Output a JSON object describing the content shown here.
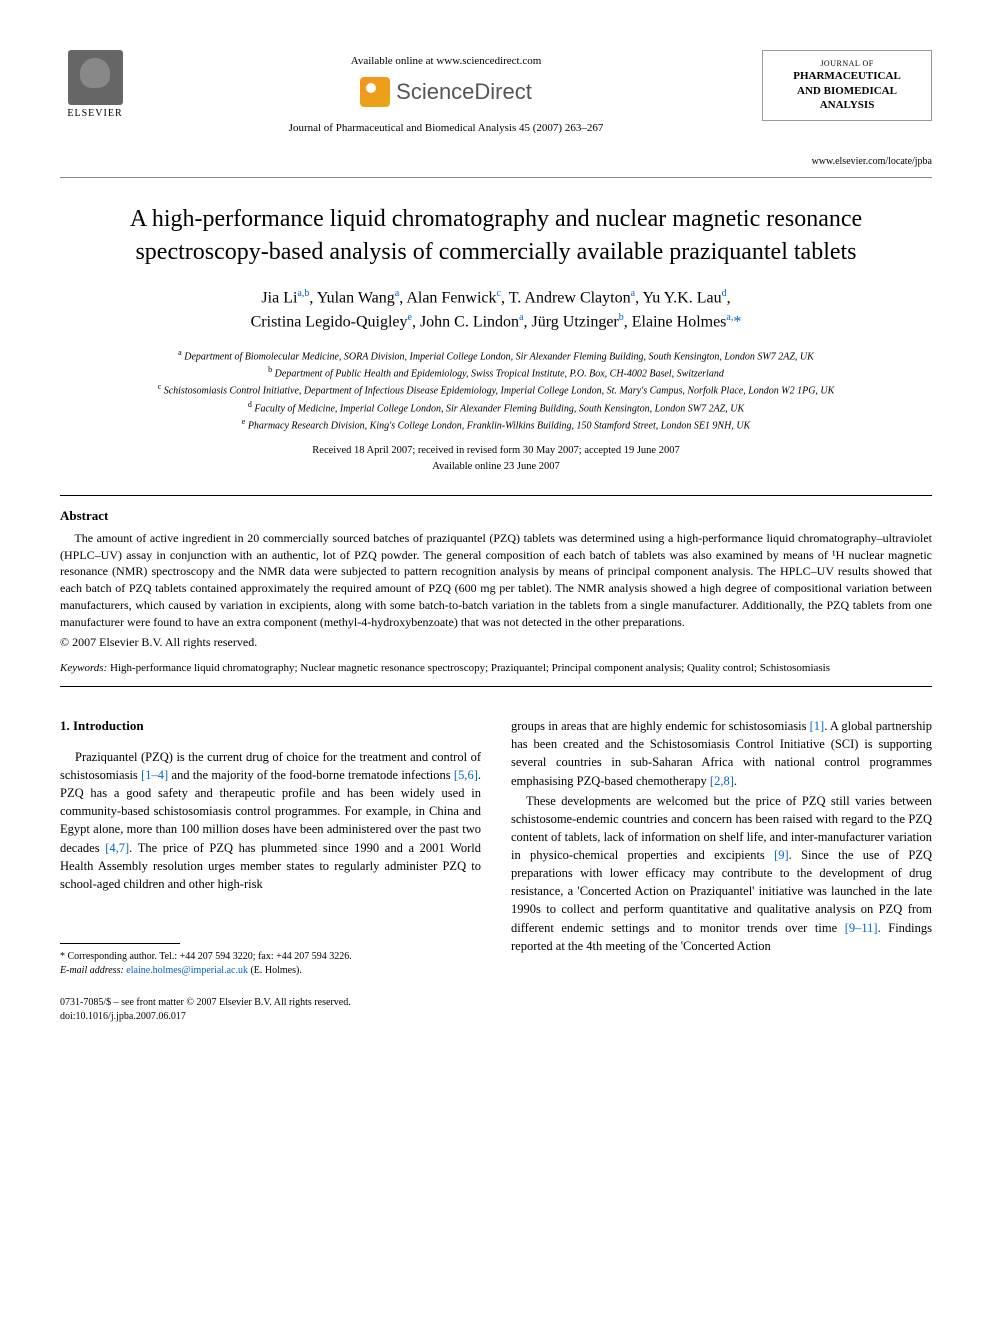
{
  "header": {
    "availability": "Available online at www.sciencedirect.com",
    "sd_brand": "ScienceDirect",
    "journal_ref": "Journal of Pharmaceutical and Biomedical Analysis 45 (2007) 263–267",
    "elsevier_label": "ELSEVIER",
    "journal_box": {
      "top": "JOURNAL OF",
      "main1": "PHARMACEUTICAL",
      "main2": "AND BIOMEDICAL",
      "main3": "ANALYSIS",
      "url": "www.elsevier.com/locate/jpba"
    }
  },
  "title": "A high-performance liquid chromatography and nuclear magnetic resonance spectroscopy-based analysis of commercially available praziquantel tablets",
  "authors_html": "Jia Li<sup>a,b</sup>, Yulan Wang<sup>a</sup>, Alan Fenwick<sup>c</sup>, T. Andrew Clayton<sup>a</sup>, Yu Y.K. Lau<sup>d</sup>,<br>Cristina Legido-Quigley<sup>e</sup>, John C. Lindon<sup>a</sup>, Jürg Utzinger<sup>b</sup>, Elaine Holmes<sup>a,</sup><span class='corr-star'>*</span>",
  "affiliations": [
    {
      "sup": "a",
      "text": "Department of Biomolecular Medicine, SORA Division, Imperial College London, Sir Alexander Fleming Building, South Kensington, London SW7 2AZ, UK"
    },
    {
      "sup": "b",
      "text": "Department of Public Health and Epidemiology, Swiss Tropical Institute, P.O. Box, CH-4002 Basel, Switzerland"
    },
    {
      "sup": "c",
      "text": "Schistosomiasis Control Initiative, Department of Infectious Disease Epidemiology, Imperial College London, St. Mary's Campus, Norfolk Place, London W2 1PG, UK"
    },
    {
      "sup": "d",
      "text": "Faculty of Medicine, Imperial College London, Sir Alexander Fleming Building, South Kensington, London SW7 2AZ, UK"
    },
    {
      "sup": "e",
      "text": "Pharmacy Research Division, King's College London, Franklin-Wilkins Building, 150 Stamford Street, London SE1 9NH, UK"
    }
  ],
  "dates": {
    "line1": "Received 18 April 2007; received in revised form 30 May 2007; accepted 19 June 2007",
    "line2": "Available online 23 June 2007"
  },
  "abstract": {
    "heading": "Abstract",
    "body": "The amount of active ingredient in 20 commercially sourced batches of praziquantel (PZQ) tablets was determined using a high-performance liquid chromatography–ultraviolet (HPLC–UV) assay in conjunction with an authentic, lot of PZQ powder. The general composition of each batch of tablets was also examined by means of ¹H nuclear magnetic resonance (NMR) spectroscopy and the NMR data were subjected to pattern recognition analysis by means of principal component analysis. The HPLC–UV results showed that each batch of PZQ tablets contained approximately the required amount of PZQ (600 mg per tablet). The NMR analysis showed a high degree of compositional variation between manufacturers, which caused by variation in excipients, along with some batch-to-batch variation in the tablets from a single manufacturer. Additionally, the PZQ tablets from one manufacturer were found to have an extra component (methyl-4-hydroxybenzoate) that was not detected in the other preparations.",
    "copyright": "© 2007 Elsevier B.V. All rights reserved."
  },
  "keywords": {
    "label": "Keywords:",
    "text": "High-performance liquid chromatography; Nuclear magnetic resonance spectroscopy; Praziquantel; Principal component analysis; Quality control; Schistosomiasis"
  },
  "body": {
    "section_heading": "1. Introduction",
    "left_p1": "Praziquantel (PZQ) is the current drug of choice for the treatment and control of schistosomiasis [1–4] and the majority of the food-borne trematode infections [5,6]. PZQ has a good safety and therapeutic profile and has been widely used in community-based schistosomiasis control programmes. For example, in China and Egypt alone, more than 100 million doses have been administered over the past two decades [4,7]. The price of PZQ has plummeted since 1990 and a 2001 World Health Assembly resolution urges member states to regularly administer PZQ to school-aged children and other high-risk",
    "right_p1": "groups in areas that are highly endemic for schistosomiasis [1]. A global partnership has been created and the Schistosomiasis Control Initiative (SCI) is supporting several countries in sub-Saharan Africa with national control programmes emphasising PZQ-based chemotherapy [2,8].",
    "right_p2": "These developments are welcomed but the price of PZQ still varies between schistosome-endemic countries and concern has been raised with regard to the PZQ content of tablets, lack of information on shelf life, and inter-manufacturer variation in physico-chemical properties and excipients [9]. Since the use of PZQ preparations with lower efficacy may contribute to the development of drug resistance, a 'Concerted Action on Praziquantel' initiative was launched in the late 1990s to collect and perform quantitative and qualitative analysis on PZQ from different endemic settings and to monitor trends over time [9–11]. Findings reported at the 4th meeting of the 'Concerted Action"
  },
  "footnote": {
    "corr": "* Corresponding author. Tel.: +44 207 594 3220; fax: +44 207 594 3226.",
    "email_label": "E-mail address:",
    "email": "elaine.holmes@imperial.ac.uk",
    "email_suffix": "(E. Holmes)."
  },
  "footer": {
    "line1": "0731-7085/$ – see front matter © 2007 Elsevier B.V. All rights reserved.",
    "line2": "doi:10.1016/j.jpba.2007.06.017"
  },
  "colors": {
    "link": "#0066cc",
    "text": "#000000",
    "sd_orange": "#f7931e"
  }
}
